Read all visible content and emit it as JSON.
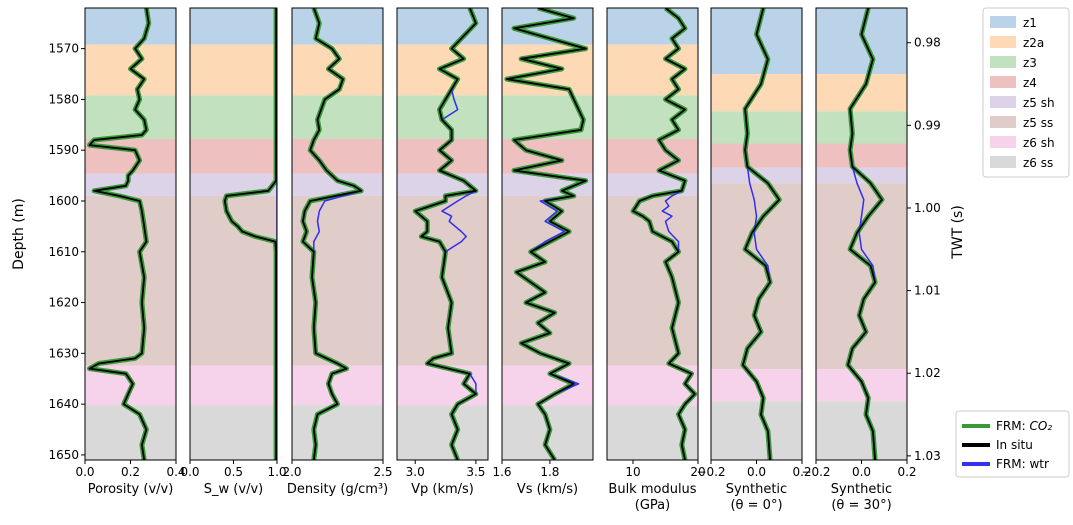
{
  "chart_data": {
    "type": "line",
    "depth_axis": {
      "label": "Depth (m)",
      "range": [
        1562,
        1651
      ],
      "ticks": [
        1570,
        1580,
        1590,
        1600,
        1610,
        1620,
        1630,
        1640,
        1650
      ],
      "tick_labels": [
        "1570",
        "1580",
        "1590",
        "1600",
        "1610",
        "1620",
        "1630",
        "1640",
        "1650"
      ],
      "inverted": true
    },
    "twt_axis": {
      "label": "TWT (s)",
      "range": [
        0.9758,
        1.0305
      ],
      "ticks": [
        0.98,
        0.99,
        1.0,
        1.01,
        1.02,
        1.03
      ],
      "tick_labels": [
        "0.98",
        "0.99",
        "1.00",
        "1.01",
        "1.02",
        "1.03"
      ]
    },
    "zones_depth": [
      {
        "name": "z1",
        "top": 1562,
        "base": 1569.2,
        "color": "#bad3e8"
      },
      {
        "name": "z2a",
        "top": 1569.2,
        "base": 1579.2,
        "color": "#fdd9b5"
      },
      {
        "name": "z3",
        "top": 1579.2,
        "base": 1587.8,
        "color": "#c2e2bf"
      },
      {
        "name": "z4",
        "top": 1587.8,
        "base": 1594.6,
        "color": "#efc0c0"
      },
      {
        "name": "z5 sh",
        "top": 1594.6,
        "base": 1599.0,
        "color": "#ddd3e9"
      },
      {
        "name": "z5 ss",
        "top": 1599.0,
        "base": 1632.4,
        "color": "#e0ccc9"
      },
      {
        "name": "z6 sh",
        "top": 1632.4,
        "base": 1640.2,
        "color": "#f6d3ea"
      },
      {
        "name": "z6 ss",
        "top": 1640.2,
        "base": 1651,
        "color": "#d9d9d9"
      }
    ],
    "zones_twt": [
      {
        "name": "z1",
        "top": 0.9758,
        "base": 0.9838
      },
      {
        "name": "z2a",
        "top": 0.9838,
        "base": 0.9883
      },
      {
        "name": "z3",
        "top": 0.9883,
        "base": 0.9922
      },
      {
        "name": "z4",
        "top": 0.9922,
        "base": 0.9951
      },
      {
        "name": "z5 sh",
        "top": 0.9951,
        "base": 0.997
      },
      {
        "name": "z5 ss",
        "top": 0.997,
        "base": 1.0195
      },
      {
        "name": "z6 sh",
        "top": 1.0195,
        "base": 1.0234
      },
      {
        "name": "z6 ss",
        "top": 1.0234,
        "base": 1.0305
      }
    ],
    "panels": [
      {
        "xlabel": "Porosity (v/v)",
        "xlim": [
          0.0,
          0.4
        ],
        "ticks": [
          0.0,
          0.2,
          0.4
        ],
        "tick_labels": [
          "0.0",
          "0.2",
          "0.4"
        ],
        "depth": [
          1562,
          1565,
          1568,
          1570,
          1572,
          1574,
          1576,
          1578,
          1580,
          1582,
          1584,
          1586,
          1587,
          1588,
          1589,
          1590,
          1592,
          1594,
          1595,
          1596,
          1597,
          1598,
          1599,
          1600,
          1602,
          1605,
          1608,
          1610,
          1615,
          1620,
          1625,
          1630,
          1631,
          1632,
          1633,
          1634,
          1636,
          1638,
          1640,
          1642,
          1645,
          1648,
          1651
        ],
        "in_situ": [
          0.27,
          0.28,
          0.26,
          0.22,
          0.25,
          0.2,
          0.26,
          0.23,
          0.24,
          0.22,
          0.26,
          0.27,
          0.25,
          0.04,
          0.02,
          0.22,
          0.24,
          0.21,
          0.19,
          0.19,
          0.18,
          0.04,
          0.15,
          0.24,
          0.25,
          0.26,
          0.27,
          0.24,
          0.26,
          0.25,
          0.26,
          0.25,
          0.22,
          0.06,
          0.02,
          0.18,
          0.21,
          0.19,
          0.17,
          0.24,
          0.27,
          0.25,
          0.26
        ]
      },
      {
        "xlabel": "S_w (v/v)",
        "xlim": [
          0.0,
          1.0
        ],
        "ticks": [
          0.0,
          0.5,
          1.0
        ],
        "tick_labels": [
          "0.0",
          "0.5",
          "1.0"
        ],
        "depth": [
          1562,
          1590,
          1596,
          1598,
          1599,
          1600,
          1602,
          1604,
          1605,
          1606,
          1607,
          1608,
          1610,
          1651
        ],
        "in_situ": [
          0.99,
          0.99,
          0.99,
          0.9,
          0.42,
          0.4,
          0.42,
          0.48,
          0.55,
          0.6,
          0.75,
          0.98,
          0.99,
          0.99
        ],
        "frm_wtr": [
          1.0,
          1.0,
          1.0,
          1.0,
          1.0,
          1.0,
          1.0,
          1.0,
          1.0,
          1.0,
          1.0,
          1.0,
          1.0,
          1.0
        ]
      },
      {
        "xlabel": "Density (g/cm³)",
        "xlim": [
          2.0,
          2.5
        ],
        "ticks": [
          2.0,
          2.5
        ],
        "tick_labels": [
          "2.0",
          "2.5"
        ],
        "depth": [
          1562,
          1565,
          1568,
          1570,
          1572,
          1574,
          1576,
          1578,
          1580,
          1582,
          1584,
          1586,
          1588,
          1590,
          1592,
          1594,
          1596,
          1597,
          1598,
          1599,
          1600,
          1602,
          1604,
          1606,
          1608,
          1610,
          1615,
          1620,
          1625,
          1630,
          1632,
          1633,
          1634,
          1636,
          1638,
          1640,
          1642,
          1645,
          1648,
          1651
        ],
        "in_situ": [
          2.12,
          2.15,
          2.13,
          2.22,
          2.26,
          2.2,
          2.28,
          2.26,
          2.18,
          2.16,
          2.14,
          2.15,
          2.12,
          2.1,
          2.15,
          2.19,
          2.25,
          2.34,
          2.38,
          2.24,
          2.1,
          2.07,
          2.06,
          2.08,
          2.06,
          2.12,
          2.11,
          2.13,
          2.12,
          2.13,
          2.25,
          2.3,
          2.22,
          2.2,
          2.22,
          2.25,
          2.14,
          2.12,
          2.13,
          2.12
        ],
        "frm_wtr": [
          2.12,
          2.15,
          2.13,
          2.22,
          2.26,
          2.2,
          2.28,
          2.26,
          2.18,
          2.16,
          2.14,
          2.15,
          2.12,
          2.1,
          2.15,
          2.19,
          2.25,
          2.34,
          2.38,
          2.28,
          2.18,
          2.15,
          2.14,
          2.15,
          2.12,
          2.12,
          2.11,
          2.13,
          2.12,
          2.13,
          2.25,
          2.3,
          2.22,
          2.2,
          2.22,
          2.25,
          2.14,
          2.12,
          2.13,
          2.12
        ]
      },
      {
        "xlabel": "Vp (km/s)",
        "xlim": [
          2.85,
          3.6
        ],
        "ticks": [
          3.0,
          3.5
        ],
        "tick_labels": [
          "3.0",
          "3.5"
        ],
        "depth": [
          1562,
          1565,
          1568,
          1570,
          1572,
          1574,
          1576,
          1578,
          1580,
          1582,
          1584,
          1586,
          1588,
          1590,
          1592,
          1594,
          1596,
          1598,
          1599,
          1600,
          1602,
          1603,
          1604,
          1606,
          1607,
          1608,
          1610,
          1615,
          1620,
          1625,
          1630,
          1631,
          1632,
          1634,
          1636,
          1638,
          1640,
          1642,
          1645,
          1648,
          1651
        ],
        "in_situ": [
          3.45,
          3.5,
          3.38,
          3.3,
          3.4,
          3.2,
          3.35,
          3.3,
          3.25,
          3.2,
          3.22,
          3.3,
          3.3,
          3.2,
          3.3,
          3.2,
          3.4,
          3.5,
          3.25,
          3.25,
          3.0,
          3.05,
          3.1,
          3.1,
          3.05,
          3.2,
          3.25,
          3.22,
          3.3,
          3.27,
          3.3,
          3.15,
          3.1,
          3.45,
          3.4,
          3.5,
          3.35,
          3.3,
          3.35,
          3.3,
          3.35
        ],
        "frm_wtr": [
          3.45,
          3.5,
          3.38,
          3.3,
          3.4,
          3.2,
          3.35,
          3.3,
          3.32,
          3.35,
          3.22,
          3.3,
          3.3,
          3.2,
          3.3,
          3.2,
          3.4,
          3.5,
          3.42,
          3.35,
          3.22,
          3.3,
          3.28,
          3.38,
          3.42,
          3.38,
          3.25,
          3.22,
          3.3,
          3.27,
          3.3,
          3.15,
          3.1,
          3.45,
          3.5,
          3.5,
          3.35,
          3.3,
          3.35,
          3.3,
          3.35
        ]
      },
      {
        "xlabel": "Vs (km/s)",
        "xlim": [
          1.6,
          1.98
        ],
        "ticks": [
          1.6,
          1.8
        ],
        "tick_labels": [
          "1.6",
          "1.8"
        ],
        "depth": [
          1562,
          1564,
          1566,
          1568,
          1570,
          1572,
          1574,
          1576,
          1578,
          1580,
          1582,
          1584,
          1586,
          1588,
          1590,
          1592,
          1594,
          1596,
          1598,
          1599,
          1600,
          1602,
          1604,
          1606,
          1608,
          1610,
          1612,
          1614,
          1616,
          1618,
          1620,
          1622,
          1624,
          1626,
          1628,
          1630,
          1632,
          1634,
          1636,
          1638,
          1640,
          1642,
          1645,
          1648,
          1651
        ],
        "in_situ": [
          1.75,
          1.9,
          1.65,
          1.8,
          1.95,
          1.68,
          1.85,
          1.62,
          1.88,
          1.9,
          1.92,
          1.94,
          1.93,
          1.65,
          1.7,
          1.85,
          1.65,
          1.95,
          1.85,
          1.9,
          1.78,
          1.85,
          1.8,
          1.88,
          1.8,
          1.72,
          1.78,
          1.66,
          1.72,
          1.78,
          1.7,
          1.82,
          1.75,
          1.8,
          1.68,
          1.76,
          1.88,
          1.8,
          1.9,
          1.82,
          1.75,
          1.78,
          1.8,
          1.78,
          1.82
        ],
        "frm_wtr": [
          1.75,
          1.9,
          1.65,
          1.8,
          1.95,
          1.68,
          1.85,
          1.62,
          1.88,
          1.9,
          1.92,
          1.94,
          1.93,
          1.65,
          1.7,
          1.85,
          1.65,
          1.95,
          1.85,
          1.9,
          1.76,
          1.83,
          1.78,
          1.86,
          1.78,
          1.72,
          1.78,
          1.66,
          1.72,
          1.78,
          1.7,
          1.82,
          1.75,
          1.8,
          1.68,
          1.76,
          1.88,
          1.8,
          1.92,
          1.82,
          1.75,
          1.78,
          1.8,
          1.78,
          1.82
        ]
      },
      {
        "xlabel": "Bulk modulus",
        "xlabel2": "(GPa)",
        "xlim": [
          6.0,
          20.0
        ],
        "ticks": [
          10,
          20
        ],
        "tick_labels": [
          "10",
          "20"
        ],
        "depth": [
          1562,
          1564,
          1566,
          1568,
          1570,
          1572,
          1574,
          1576,
          1578,
          1580,
          1582,
          1584,
          1586,
          1588,
          1590,
          1592,
          1594,
          1596,
          1598,
          1599,
          1600,
          1601,
          1602,
          1603,
          1604,
          1606,
          1608,
          1610,
          1612,
          1615,
          1620,
          1625,
          1630,
          1632,
          1634,
          1636,
          1638,
          1640,
          1642,
          1645,
          1648,
          1651
        ],
        "in_situ": [
          15,
          17,
          18,
          16,
          17,
          15,
          18,
          16,
          17,
          15,
          18,
          16,
          17,
          14,
          15,
          17,
          14,
          18,
          17.5,
          13,
          11,
          10.5,
          10,
          11.5,
          12.5,
          13,
          16,
          17,
          15,
          16,
          17,
          16,
          17,
          15.5,
          19,
          18,
          19.5,
          18,
          17,
          18,
          17.5,
          18
        ],
        "frm_wtr": [
          15,
          17,
          18,
          16,
          17,
          15,
          18,
          16,
          17,
          15,
          18,
          16,
          17,
          14,
          15,
          17,
          14,
          18,
          17.5,
          16,
          15,
          15.5,
          14.5,
          16,
          15,
          15.5,
          17,
          17,
          15,
          16,
          17,
          16,
          17,
          15.5,
          19,
          18,
          19.5,
          18,
          17,
          18,
          17.5,
          18
        ]
      },
      {
        "xlabel": "Synthetic",
        "xlabel2": "(θ = 0°)",
        "xlim": [
          -0.2,
          0.2
        ],
        "ticks": [
          -0.2,
          0.0,
          0.2
        ],
        "tick_labels": [
          "−0.2",
          "0.0",
          "0.2"
        ],
        "twt": [
          0.9758,
          0.979,
          0.982,
          0.985,
          0.988,
          0.991,
          0.993,
          0.995,
          0.997,
          0.999,
          1.001,
          1.003,
          1.005,
          1.007,
          1.009,
          1.011,
          1.013,
          1.015,
          1.017,
          1.019,
          1.021,
          1.023,
          1.025,
          1.027,
          1.0305
        ],
        "in_situ": [
          0.03,
          0.0,
          0.05,
          0.02,
          -0.05,
          -0.04,
          -0.05,
          -0.04,
          0.05,
          0.1,
          0.03,
          -0.02,
          -0.05,
          0.04,
          0.06,
          0.01,
          -0.01,
          0.02,
          -0.04,
          -0.06,
          0.0,
          0.03,
          0.02,
          0.05,
          0.06
        ],
        "frm_wtr": [
          0.03,
          0.0,
          0.05,
          0.02,
          -0.05,
          -0.04,
          -0.05,
          -0.04,
          -0.03,
          -0.01,
          0.0,
          -0.01,
          0.0,
          0.05,
          0.06,
          0.01,
          -0.01,
          0.02,
          -0.04,
          -0.06,
          0.0,
          0.03,
          0.02,
          0.05,
          0.06
        ]
      },
      {
        "xlabel": "Synthetic",
        "xlabel2": "(θ = 30°)",
        "xlim": [
          -0.2,
          0.2
        ],
        "ticks": [
          -0.2,
          0.0,
          0.2
        ],
        "tick_labels": [
          "−0.2",
          "0.0",
          "0.2"
        ],
        "twt": [
          0.9758,
          0.979,
          0.982,
          0.985,
          0.988,
          0.991,
          0.993,
          0.995,
          0.997,
          0.999,
          1.001,
          1.003,
          1.005,
          1.007,
          1.009,
          1.011,
          1.013,
          1.015,
          1.017,
          1.019,
          1.021,
          1.023,
          1.025,
          1.027,
          1.0305
        ],
        "in_situ": [
          0.03,
          0.0,
          0.05,
          0.02,
          -0.05,
          -0.04,
          -0.05,
          -0.04,
          0.04,
          0.09,
          0.03,
          -0.02,
          -0.05,
          0.04,
          0.06,
          0.01,
          -0.01,
          0.02,
          -0.04,
          -0.06,
          0.0,
          0.03,
          0.02,
          0.05,
          0.06
        ],
        "frm_wtr": [
          0.03,
          0.0,
          0.05,
          0.02,
          -0.05,
          -0.04,
          -0.05,
          -0.04,
          -0.02,
          0.01,
          0.0,
          -0.01,
          0.0,
          0.05,
          0.06,
          0.01,
          -0.01,
          0.02,
          -0.04,
          -0.06,
          0.0,
          0.03,
          0.02,
          0.05,
          0.06
        ]
      }
    ],
    "zone_legend": [
      "z1",
      "z2a",
      "z3",
      "z4",
      "z5 sh",
      "z5 ss",
      "z6 sh",
      "z6 ss"
    ],
    "line_legend": [
      {
        "label": "FRM: ",
        "sub": "CO₂",
        "color": "#3a9a3a"
      },
      {
        "label": "In situ",
        "sub": "",
        "color": "#000000"
      },
      {
        "label": "FRM: wtr",
        "sub": "",
        "color": "#3333ee"
      }
    ],
    "legend_placement": "right",
    "grid": false
  }
}
